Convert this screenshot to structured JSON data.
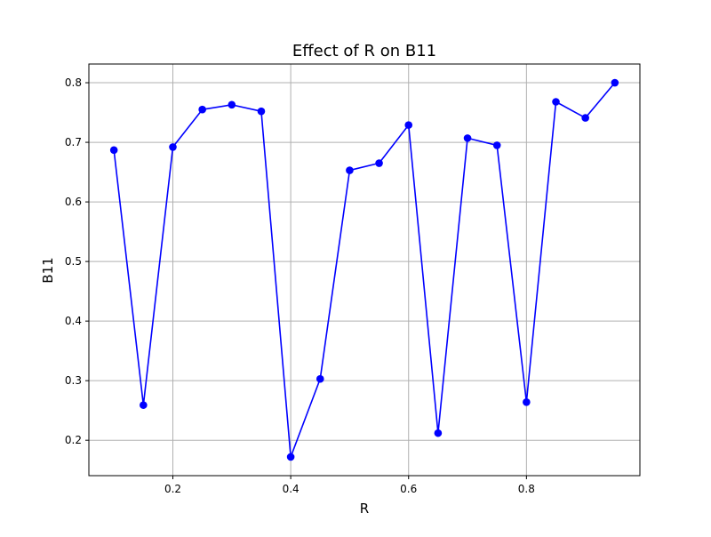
{
  "chart_data": {
    "type": "line",
    "title": "Effect of R on B11",
    "xlabel": "R",
    "ylabel": "B11",
    "x": [
      0.1,
      0.15,
      0.2,
      0.25,
      0.3,
      0.35,
      0.4,
      0.45,
      0.5,
      0.55,
      0.6,
      0.65,
      0.7,
      0.75,
      0.8,
      0.85,
      0.9,
      0.95
    ],
    "series": [
      {
        "values": [
          0.687,
          0.259,
          0.692,
          0.755,
          0.763,
          0.752,
          0.172,
          0.303,
          0.653,
          0.665,
          0.729,
          0.212,
          0.707,
          0.695,
          0.264,
          0.768,
          0.741,
          0.8
        ],
        "color": "#0000ff",
        "marker": "circle"
      }
    ],
    "xlim": [
      0.0575,
      0.9925
    ],
    "ylim": [
      0.1406,
      0.8314
    ],
    "xticks": [
      0.2,
      0.4,
      0.6,
      0.8
    ],
    "xtick_labels": [
      "0.2",
      "0.4",
      "0.6",
      "0.8"
    ],
    "yticks": [
      0.2,
      0.3,
      0.4,
      0.5,
      0.6,
      0.7,
      0.8
    ],
    "ytick_labels": [
      "0.2",
      "0.3",
      "0.4",
      "0.5",
      "0.6",
      "0.7",
      "0.8"
    ],
    "grid": true,
    "legend": "none"
  }
}
